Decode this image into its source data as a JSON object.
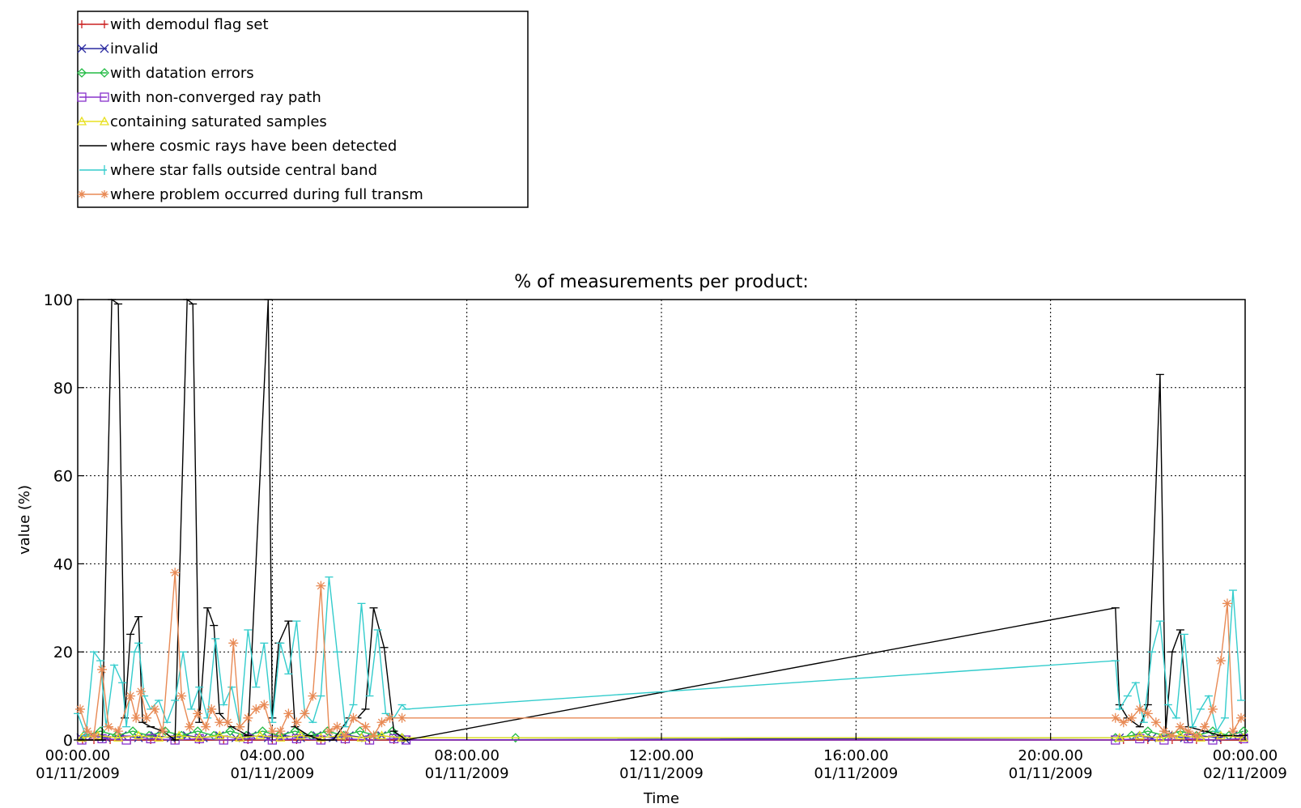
{
  "chart_data": {
    "type": "line",
    "title": "% of measurements per product:",
    "xlabel": "Time",
    "ylabel": "value (%)",
    "ylim": [
      0,
      100
    ],
    "yticks": [
      "0",
      "20",
      "40",
      "60",
      "80",
      "100"
    ],
    "xlim": [
      "2009-11-01T00:00",
      "2009-11-02T00:00"
    ],
    "xticks": [
      {
        "time": "00:00.00",
        "date": "01/11/2009"
      },
      {
        "time": "04:00.00",
        "date": "01/11/2009"
      },
      {
        "time": "08:00.00",
        "date": "01/11/2009"
      },
      {
        "time": "12:00.00",
        "date": "01/11/2009"
      },
      {
        "time": "16:00.00",
        "date": "01/11/2009"
      },
      {
        "time": "20:00.00",
        "date": "01/11/2009"
      },
      {
        "time": "00:00.00",
        "date": "02/11/2009"
      }
    ],
    "grid": true,
    "legend_position": "top-left",
    "series": [
      {
        "name": "with demodul flag set",
        "color": "#cc2222",
        "marker": "plus",
        "points": [
          [
            "00:06",
            0
          ],
          [
            "00:20",
            0
          ],
          [
            "00:40",
            0
          ],
          [
            "01:05",
            0
          ],
          [
            "01:30",
            0
          ],
          [
            "02:00",
            0
          ],
          [
            "02:30",
            0
          ],
          [
            "03:00",
            0
          ],
          [
            "03:30",
            0
          ],
          [
            "04:00",
            0
          ],
          [
            "04:30",
            0
          ],
          [
            "05:00",
            0
          ],
          [
            "05:30",
            0
          ],
          [
            "06:00",
            0
          ],
          [
            "06:30",
            0
          ],
          [
            "21:30",
            0
          ],
          [
            "22:00",
            0
          ],
          [
            "22:30",
            0
          ],
          [
            "23:00",
            0
          ],
          [
            "23:30",
            0
          ],
          [
            "23:55",
            0
          ]
        ]
      },
      {
        "name": "invalid",
        "color": "#2a2aa0",
        "marker": "x",
        "points": [
          [
            "00:04",
            0.5
          ],
          [
            "00:18",
            1
          ],
          [
            "00:35",
            0.5
          ],
          [
            "00:55",
            1
          ],
          [
            "01:15",
            0.5
          ],
          [
            "01:35",
            1
          ],
          [
            "01:55",
            0.5
          ],
          [
            "02:15",
            1
          ],
          [
            "02:35",
            0.5
          ],
          [
            "02:55",
            1
          ],
          [
            "03:15",
            0.5
          ],
          [
            "03:35",
            1
          ],
          [
            "03:55",
            0.5
          ],
          [
            "04:15",
            1
          ],
          [
            "04:35",
            0.5
          ],
          [
            "04:55",
            1
          ],
          [
            "05:15",
            0.5
          ],
          [
            "05:35",
            1
          ],
          [
            "05:55",
            0.5
          ],
          [
            "06:15",
            1
          ],
          [
            "06:35",
            0.5
          ],
          [
            "06:45",
            0
          ],
          [
            "21:25",
            0.5
          ],
          [
            "21:45",
            1
          ],
          [
            "22:05",
            0.5
          ],
          [
            "22:25",
            1
          ],
          [
            "22:45",
            0.5
          ],
          [
            "23:05",
            1
          ],
          [
            "23:25",
            0.5
          ],
          [
            "23:45",
            1
          ],
          [
            "23:58",
            0.5
          ]
        ]
      },
      {
        "name": "with datation errors",
        "color": "#22bb44",
        "marker": "diamond",
        "points": [
          [
            "00:08",
            1
          ],
          [
            "00:28",
            2
          ],
          [
            "00:48",
            1
          ],
          [
            "01:08",
            2
          ],
          [
            "01:28",
            1
          ],
          [
            "01:48",
            2
          ],
          [
            "02:08",
            1
          ],
          [
            "02:28",
            2
          ],
          [
            "02:48",
            1
          ],
          [
            "03:08",
            2
          ],
          [
            "03:28",
            1
          ],
          [
            "03:48",
            2
          ],
          [
            "04:08",
            1
          ],
          [
            "04:28",
            2
          ],
          [
            "04:48",
            1
          ],
          [
            "05:08",
            2
          ],
          [
            "05:28",
            1
          ],
          [
            "05:48",
            2
          ],
          [
            "06:08",
            1
          ],
          [
            "06:28",
            2
          ],
          [
            "06:40",
            0.5
          ],
          [
            "09:00",
            0.5
          ],
          [
            "21:20",
            0.5
          ],
          [
            "21:40",
            1
          ],
          [
            "22:00",
            2
          ],
          [
            "22:20",
            1
          ],
          [
            "22:40",
            2
          ],
          [
            "23:00",
            1
          ],
          [
            "23:20",
            2
          ],
          [
            "23:40",
            1
          ],
          [
            "23:58",
            2
          ]
        ]
      },
      {
        "name": "with non-converged ray path",
        "color": "#8833cc",
        "marker": "square",
        "points": [
          [
            "00:05",
            0
          ],
          [
            "00:30",
            0.3
          ],
          [
            "01:00",
            0
          ],
          [
            "01:30",
            0.3
          ],
          [
            "02:00",
            0
          ],
          [
            "02:30",
            0.3
          ],
          [
            "03:00",
            0
          ],
          [
            "03:30",
            0.3
          ],
          [
            "04:00",
            0
          ],
          [
            "04:30",
            0.3
          ],
          [
            "05:00",
            0
          ],
          [
            "05:30",
            0.3
          ],
          [
            "06:00",
            0
          ],
          [
            "06:30",
            0.3
          ],
          [
            "06:45",
            0
          ],
          [
            "21:20",
            0
          ],
          [
            "21:50",
            0.3
          ],
          [
            "22:20",
            0
          ],
          [
            "22:50",
            0.3
          ],
          [
            "23:20",
            0
          ],
          [
            "23:58",
            0.3
          ]
        ]
      },
      {
        "name": "containing saturated samples",
        "color": "#e8e020",
        "marker": "triangle",
        "points": [
          [
            "00:05",
            0.5
          ],
          [
            "00:25",
            1
          ],
          [
            "00:50",
            0.5
          ],
          [
            "01:15",
            1
          ],
          [
            "01:40",
            0.5
          ],
          [
            "02:05",
            1
          ],
          [
            "02:30",
            0.5
          ],
          [
            "02:55",
            1
          ],
          [
            "03:20",
            0.5
          ],
          [
            "03:45",
            1
          ],
          [
            "04:10",
            0.5
          ],
          [
            "04:35",
            1
          ],
          [
            "05:00",
            0.5
          ],
          [
            "05:25",
            1
          ],
          [
            "05:50",
            0.5
          ],
          [
            "06:15",
            1
          ],
          [
            "06:40",
            0.5
          ],
          [
            "21:25",
            0.5
          ],
          [
            "21:50",
            1
          ],
          [
            "22:15",
            0.5
          ],
          [
            "22:40",
            1
          ],
          [
            "23:05",
            0.5
          ],
          [
            "23:30",
            1
          ],
          [
            "23:58",
            0.5
          ]
        ]
      },
      {
        "name": "where cosmic rays have been detected",
        "color": "#000000",
        "marker": "tick",
        "points": [
          [
            "00:00",
            0
          ],
          [
            "00:20",
            0
          ],
          [
            "00:30",
            0
          ],
          [
            "00:42",
            100
          ],
          [
            "00:50",
            99
          ],
          [
            "00:58",
            5
          ],
          [
            "01:05",
            24
          ],
          [
            "01:15",
            28
          ],
          [
            "01:20",
            4
          ],
          [
            "01:30",
            3
          ],
          [
            "01:45",
            2
          ],
          [
            "02:00",
            0
          ],
          [
            "02:15",
            100
          ],
          [
            "02:22",
            99
          ],
          [
            "02:30",
            4
          ],
          [
            "02:40",
            30
          ],
          [
            "02:48",
            26
          ],
          [
            "02:55",
            6
          ],
          [
            "03:10",
            3
          ],
          [
            "03:30",
            1
          ],
          [
            "03:55",
            100
          ],
          [
            "04:00",
            5
          ],
          [
            "04:08",
            22
          ],
          [
            "04:20",
            27
          ],
          [
            "04:28",
            3
          ],
          [
            "04:45",
            1
          ],
          [
            "05:00",
            0
          ],
          [
            "05:15",
            0
          ],
          [
            "05:35",
            5
          ],
          [
            "05:45",
            5
          ],
          [
            "05:55",
            7
          ],
          [
            "06:05",
            30
          ],
          [
            "06:18",
            21
          ],
          [
            "06:30",
            2
          ],
          [
            "06:45",
            0
          ],
          [
            "21:20",
            30
          ],
          [
            "21:25",
            8
          ],
          [
            "21:35",
            5
          ],
          [
            "21:50",
            3
          ],
          [
            "22:00",
            8
          ],
          [
            "22:15",
            83
          ],
          [
            "22:22",
            2
          ],
          [
            "22:30",
            20
          ],
          [
            "22:40",
            25
          ],
          [
            "22:50",
            3
          ],
          [
            "23:10",
            2
          ],
          [
            "23:30",
            1
          ],
          [
            "23:58",
            1
          ]
        ]
      },
      {
        "name": "where star falls outside central band",
        "color": "#33cccc",
        "marker": "tick",
        "points": [
          [
            "00:00",
            6
          ],
          [
            "00:10",
            1
          ],
          [
            "00:20",
            20
          ],
          [
            "00:28",
            18
          ],
          [
            "00:35",
            3
          ],
          [
            "00:45",
            17
          ],
          [
            "00:55",
            13
          ],
          [
            "01:00",
            3
          ],
          [
            "01:10",
            20
          ],
          [
            "01:15",
            22
          ],
          [
            "01:22",
            10
          ],
          [
            "01:30",
            7
          ],
          [
            "01:40",
            9
          ],
          [
            "01:50",
            4
          ],
          [
            "02:00",
            9
          ],
          [
            "02:10",
            20
          ],
          [
            "02:20",
            7
          ],
          [
            "02:30",
            12
          ],
          [
            "02:40",
            5
          ],
          [
            "02:50",
            23
          ],
          [
            "03:00",
            8
          ],
          [
            "03:10",
            12
          ],
          [
            "03:20",
            3
          ],
          [
            "03:30",
            25
          ],
          [
            "03:40",
            12
          ],
          [
            "03:50",
            22
          ],
          [
            "04:00",
            4
          ],
          [
            "04:10",
            22
          ],
          [
            "04:20",
            15
          ],
          [
            "04:30",
            27
          ],
          [
            "04:40",
            6
          ],
          [
            "04:50",
            4
          ],
          [
            "05:00",
            10
          ],
          [
            "05:10",
            37
          ],
          [
            "05:20",
            20
          ],
          [
            "05:30",
            3
          ],
          [
            "05:40",
            8
          ],
          [
            "05:50",
            31
          ],
          [
            "06:00",
            10
          ],
          [
            "06:10",
            25
          ],
          [
            "06:20",
            6
          ],
          [
            "06:30",
            5
          ],
          [
            "06:40",
            8
          ],
          [
            "06:45",
            7
          ],
          [
            "21:20",
            18
          ],
          [
            "21:25",
            7
          ],
          [
            "21:35",
            10
          ],
          [
            "21:45",
            13
          ],
          [
            "21:55",
            4
          ],
          [
            "22:05",
            20
          ],
          [
            "22:15",
            27
          ],
          [
            "22:25",
            8
          ],
          [
            "22:35",
            5
          ],
          [
            "22:45",
            24
          ],
          [
            "22:55",
            3
          ],
          [
            "23:05",
            7
          ],
          [
            "23:15",
            10
          ],
          [
            "23:25",
            2
          ],
          [
            "23:35",
            5
          ],
          [
            "23:45",
            34
          ],
          [
            "23:55",
            9
          ]
        ]
      },
      {
        "name": "where problem occurred during full transm",
        "color": "#e88a55",
        "marker": "asterisk",
        "points": [
          [
            "00:03",
            7
          ],
          [
            "00:12",
            2
          ],
          [
            "00:20",
            1
          ],
          [
            "00:30",
            16
          ],
          [
            "00:38",
            3
          ],
          [
            "00:50",
            2
          ],
          [
            "01:05",
            10
          ],
          [
            "01:12",
            5
          ],
          [
            "01:18",
            11
          ],
          [
            "01:25",
            5
          ],
          [
            "01:35",
            7
          ],
          [
            "01:45",
            2
          ],
          [
            "02:00",
            38
          ],
          [
            "02:08",
            10
          ],
          [
            "02:18",
            3
          ],
          [
            "02:28",
            6
          ],
          [
            "02:38",
            3
          ],
          [
            "02:45",
            7
          ],
          [
            "02:55",
            4
          ],
          [
            "03:05",
            4
          ],
          [
            "03:12",
            22
          ],
          [
            "03:20",
            3
          ],
          [
            "03:30",
            5
          ],
          [
            "03:40",
            7
          ],
          [
            "03:50",
            8
          ],
          [
            "04:00",
            2
          ],
          [
            "04:10",
            2
          ],
          [
            "04:20",
            6
          ],
          [
            "04:30",
            4
          ],
          [
            "04:40",
            6
          ],
          [
            "04:50",
            10
          ],
          [
            "05:00",
            35
          ],
          [
            "05:10",
            2
          ],
          [
            "05:20",
            3
          ],
          [
            "05:30",
            1
          ],
          [
            "05:40",
            5
          ],
          [
            "05:55",
            3
          ],
          [
            "06:05",
            1
          ],
          [
            "06:15",
            4
          ],
          [
            "06:25",
            5
          ],
          [
            "06:40",
            5
          ],
          [
            "21:20",
            5
          ],
          [
            "21:30",
            4
          ],
          [
            "21:40",
            5
          ],
          [
            "21:50",
            7
          ],
          [
            "22:00",
            6
          ],
          [
            "22:10",
            4
          ],
          [
            "22:20",
            2
          ],
          [
            "22:30",
            1
          ],
          [
            "22:40",
            3
          ],
          [
            "22:50",
            2
          ],
          [
            "23:00",
            1
          ],
          [
            "23:10",
            3
          ],
          [
            "23:20",
            7
          ],
          [
            "23:30",
            18
          ],
          [
            "23:38",
            31
          ],
          [
            "23:45",
            2
          ],
          [
            "23:55",
            5
          ]
        ]
      }
    ]
  }
}
